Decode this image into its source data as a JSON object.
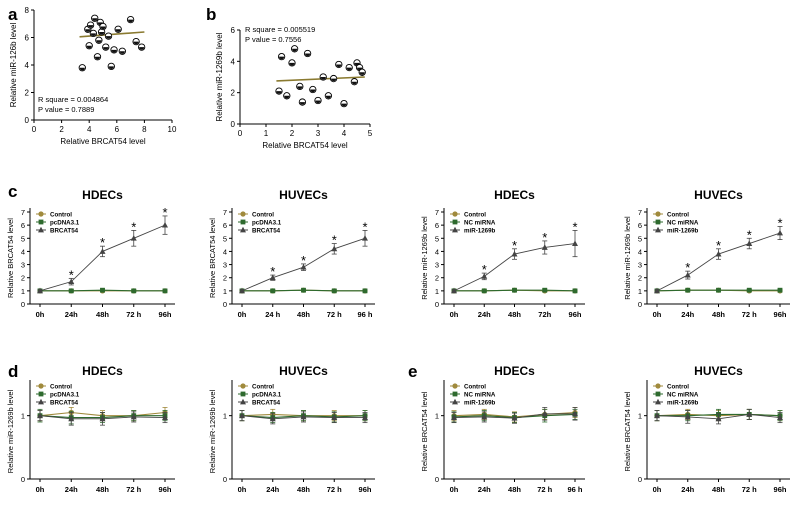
{
  "colors": {
    "control": "#a08a3c",
    "mid": "#2e6a2e",
    "treat": "#444444",
    "fit": "#8a7a30",
    "axis": "#000000"
  },
  "panel_letters": [
    "a",
    "b",
    "c",
    "d",
    "e"
  ],
  "chart_data": [
    {
      "id": "a",
      "type": "scatter",
      "xlabel": "Relative BRCAT54 level",
      "ylabel": "Relative miR-126b level",
      "xlim": [
        0,
        10
      ],
      "ylim": [
        0,
        8
      ],
      "xticks": [
        0,
        2,
        4,
        6,
        8,
        10
      ],
      "yticks": [
        0,
        2,
        4,
        6,
        8
      ],
      "x": [
        3.5,
        3.9,
        4.0,
        4.1,
        4.3,
        4.4,
        4.6,
        4.7,
        4.8,
        4.9,
        5.0,
        5.2,
        5.4,
        5.6,
        5.8,
        6.1,
        6.4,
        7.0,
        7.4,
        7.8
      ],
      "y": [
        3.8,
        6.6,
        5.4,
        6.9,
        6.3,
        7.4,
        4.6,
        5.8,
        7.1,
        6.4,
        6.8,
        5.3,
        6.1,
        3.9,
        5.1,
        6.6,
        5.0,
        7.3,
        5.7,
        5.3
      ],
      "fit": [
        [
          3.3,
          6.05
        ],
        [
          8.0,
          6.4
        ]
      ],
      "annotation": [
        "R square = 0.004864",
        "P value = 0.7889"
      ]
    },
    {
      "id": "b",
      "type": "scatter",
      "xlabel": "Relative BRCAT54 level",
      "ylabel": "Relative miR-1269b level",
      "xlim": [
        0,
        5
      ],
      "ylim": [
        0,
        6
      ],
      "xticks": [
        0,
        1,
        2,
        3,
        4,
        5
      ],
      "yticks": [
        0,
        2,
        4,
        6
      ],
      "x": [
        1.5,
        1.6,
        1.8,
        2.0,
        2.1,
        2.3,
        2.4,
        2.6,
        2.8,
        3.0,
        3.2,
        3.4,
        3.6,
        3.8,
        4.0,
        4.2,
        4.4,
        4.5,
        4.6,
        4.7
      ],
      "y": [
        2.1,
        4.3,
        1.8,
        3.9,
        4.8,
        2.4,
        1.4,
        4.5,
        2.2,
        1.5,
        3.0,
        1.8,
        2.9,
        3.8,
        1.3,
        3.6,
        2.7,
        3.9,
        3.6,
        3.3
      ],
      "fit": [
        [
          1.4,
          2.75
        ],
        [
          4.8,
          3.0
        ]
      ],
      "annotation": [
        "R square = 0.005519",
        "P value = 0.7556"
      ]
    },
    {
      "id": "c1",
      "type": "line",
      "title": "HDECs",
      "ylabel": "Relative BRCAT54 level",
      "categories": [
        "0h",
        "24h",
        "48h",
        "72 h",
        "96h"
      ],
      "ylim": [
        0,
        7
      ],
      "yticks": [
        0,
        1,
        2,
        3,
        4,
        5,
        6,
        7
      ],
      "series": [
        {
          "name": "Control",
          "values": [
            1.0,
            1.0,
            1.0,
            1.0,
            1.0
          ],
          "err": [
            0.08,
            0.08,
            0.08,
            0.08,
            0.08
          ]
        },
        {
          "name": "pcDNA3.1",
          "values": [
            1.0,
            1.0,
            1.05,
            1.0,
            1.0
          ],
          "err": [
            0.08,
            0.08,
            0.1,
            0.08,
            0.08
          ]
        },
        {
          "name": "BRCAT54",
          "values": [
            1.0,
            1.7,
            4.0,
            5.0,
            6.0
          ],
          "err": [
            0.08,
            0.25,
            0.4,
            0.6,
            0.7
          ]
        }
      ],
      "sig": [
        "",
        "*",
        "*",
        "*",
        "*"
      ]
    },
    {
      "id": "c2",
      "type": "line",
      "title": "HUVECs",
      "ylabel": "Relative BRCAT54 level",
      "categories": [
        "0h",
        "24 h",
        "48h",
        "72 h",
        "96 h"
      ],
      "ylim": [
        0,
        7
      ],
      "yticks": [
        0,
        1,
        2,
        3,
        4,
        5,
        6,
        7
      ],
      "series": [
        {
          "name": "Control",
          "values": [
            1.0,
            1.0,
            1.05,
            1.0,
            1.0
          ],
          "err": [
            0.08,
            0.08,
            0.08,
            0.08,
            0.08
          ]
        },
        {
          "name": "pcDNA3.1",
          "values": [
            1.0,
            1.0,
            1.05,
            1.0,
            1.0
          ],
          "err": [
            0.08,
            0.08,
            0.08,
            0.08,
            0.08
          ]
        },
        {
          "name": "BRCAT54",
          "values": [
            1.0,
            2.0,
            2.8,
            4.2,
            5.0
          ],
          "err": [
            0.08,
            0.2,
            0.25,
            0.4,
            0.6
          ]
        }
      ],
      "sig": [
        "",
        "*",
        "*",
        "*",
        "*"
      ]
    },
    {
      "id": "c3",
      "type": "line",
      "title": "HDECs",
      "ylabel": "Relative miR-1269b level",
      "categories": [
        "0h",
        "24h",
        "48h",
        "72h",
        "96h"
      ],
      "ylim": [
        0,
        7
      ],
      "yticks": [
        0,
        1,
        2,
        3,
        4,
        5,
        6,
        7
      ],
      "series": [
        {
          "name": "Control",
          "values": [
            1.0,
            1.0,
            1.05,
            1.0,
            1.0
          ],
          "err": [
            0.08,
            0.08,
            0.08,
            0.08,
            0.08
          ]
        },
        {
          "name": "NC miRNA",
          "values": [
            1.0,
            1.0,
            1.05,
            1.05,
            1.0
          ],
          "err": [
            0.08,
            0.08,
            0.08,
            0.1,
            0.08
          ]
        },
        {
          "name": "miR-1269b",
          "values": [
            1.0,
            2.1,
            3.8,
            4.3,
            4.6
          ],
          "err": [
            0.08,
            0.25,
            0.4,
            0.5,
            1.0
          ]
        }
      ],
      "sig": [
        "",
        "*",
        "*",
        "*",
        "*"
      ]
    },
    {
      "id": "c4",
      "type": "line",
      "title": "HUVECs",
      "ylabel": "Relative miR-1269b level",
      "categories": [
        "0h",
        "24h",
        "48h",
        "72 h",
        "96h"
      ],
      "ylim": [
        0,
        7
      ],
      "yticks": [
        0,
        1,
        2,
        3,
        4,
        5,
        6,
        7
      ],
      "series": [
        {
          "name": "Control",
          "values": [
            1.0,
            1.05,
            1.05,
            1.0,
            1.0
          ],
          "err": [
            0.08,
            0.08,
            0.08,
            0.08,
            0.08
          ]
        },
        {
          "name": "NC miRNA",
          "values": [
            1.0,
            1.05,
            1.05,
            1.05,
            1.05
          ],
          "err": [
            0.08,
            0.08,
            0.08,
            0.08,
            0.08
          ]
        },
        {
          "name": "miR-1269b",
          "values": [
            1.0,
            2.2,
            3.8,
            4.6,
            5.4
          ],
          "err": [
            0.08,
            0.3,
            0.4,
            0.4,
            0.5
          ]
        }
      ],
      "sig": [
        "",
        "*",
        "*",
        "*",
        "*"
      ]
    },
    {
      "id": "d1",
      "type": "line",
      "title": "HDECs",
      "ylabel": "Relative miR-1269b level",
      "categories": [
        "0h",
        "24h",
        "48h",
        "72 h",
        "96h"
      ],
      "ylim": [
        0,
        1.5
      ],
      "yticks": [
        0,
        1
      ],
      "series": [
        {
          "name": "Control",
          "values": [
            1.0,
            1.05,
            1.0,
            1.0,
            1.05
          ],
          "err": [
            0.08,
            0.08,
            0.08,
            0.08,
            0.08
          ]
        },
        {
          "name": "pcDNA3.1",
          "values": [
            1.0,
            0.97,
            0.97,
            1.0,
            1.0
          ],
          "err": [
            0.1,
            0.1,
            0.08,
            0.08,
            0.08
          ]
        },
        {
          "name": "BRCAT54",
          "values": [
            1.0,
            0.95,
            0.95,
            0.98,
            0.97
          ],
          "err": [
            0.08,
            0.1,
            0.1,
            0.08,
            0.08
          ]
        }
      ]
    },
    {
      "id": "d2",
      "type": "line",
      "title": "HUVECs",
      "ylabel": "Relative miR-1269b level",
      "categories": [
        "0h",
        "24h",
        "48h",
        "72 h",
        "96h"
      ],
      "ylim": [
        0,
        1.5
      ],
      "yticks": [
        0,
        1
      ],
      "series": [
        {
          "name": "Control",
          "values": [
            1.0,
            1.02,
            1.0,
            1.0,
            1.0
          ],
          "err": [
            0.08,
            0.08,
            0.08,
            0.08,
            0.08
          ]
        },
        {
          "name": "pcDNA3.1",
          "values": [
            1.0,
            0.97,
            1.0,
            0.98,
            1.0
          ],
          "err": [
            0.08,
            0.08,
            0.08,
            0.08,
            0.08
          ]
        },
        {
          "name": "BRCAT54",
          "values": [
            1.0,
            0.95,
            0.98,
            0.97,
            0.97
          ],
          "err": [
            0.08,
            0.08,
            0.08,
            0.08,
            0.08
          ]
        }
      ]
    },
    {
      "id": "e1",
      "type": "line",
      "title": "HDECs",
      "ylabel": "Relative BRCAT54 level",
      "categories": [
        "0h",
        "24h",
        "48h",
        "72 h",
        "96 h"
      ],
      "ylim": [
        0,
        1.5
      ],
      "yticks": [
        0,
        1
      ],
      "series": [
        {
          "name": "Control",
          "values": [
            1.0,
            1.02,
            0.98,
            1.02,
            1.05
          ],
          "err": [
            0.08,
            0.08,
            0.08,
            0.08,
            0.08
          ]
        },
        {
          "name": "NC miRNA",
          "values": [
            0.98,
            1.0,
            0.97,
            1.0,
            1.02
          ],
          "err": [
            0.08,
            0.08,
            0.08,
            0.1,
            0.08
          ]
        },
        {
          "name": "miR-1269b",
          "values": [
            0.97,
            0.98,
            0.96,
            1.03,
            1.03
          ],
          "err": [
            0.08,
            0.08,
            0.08,
            0.1,
            0.1
          ]
        }
      ]
    },
    {
      "id": "e2",
      "type": "line",
      "title": "HUVECs",
      "ylabel": "Relative BRCAT54 level",
      "categories": [
        "0h",
        "24h",
        "48h",
        "72 h",
        "96h"
      ],
      "ylim": [
        0,
        1.5
      ],
      "yticks": [
        0,
        1
      ],
      "series": [
        {
          "name": "Control",
          "values": [
            1.0,
            1.02,
            1.0,
            1.02,
            1.0
          ],
          "err": [
            0.08,
            0.08,
            0.08,
            0.08,
            0.08
          ]
        },
        {
          "name": "NC miRNA",
          "values": [
            1.0,
            1.0,
            1.02,
            1.02,
            1.0
          ],
          "err": [
            0.08,
            0.08,
            0.08,
            0.08,
            0.08
          ]
        },
        {
          "name": "miR-1269b",
          "values": [
            1.0,
            0.98,
            0.95,
            1.02,
            0.97
          ],
          "err": [
            0.08,
            0.1,
            0.08,
            0.08,
            0.08
          ]
        }
      ]
    }
  ]
}
